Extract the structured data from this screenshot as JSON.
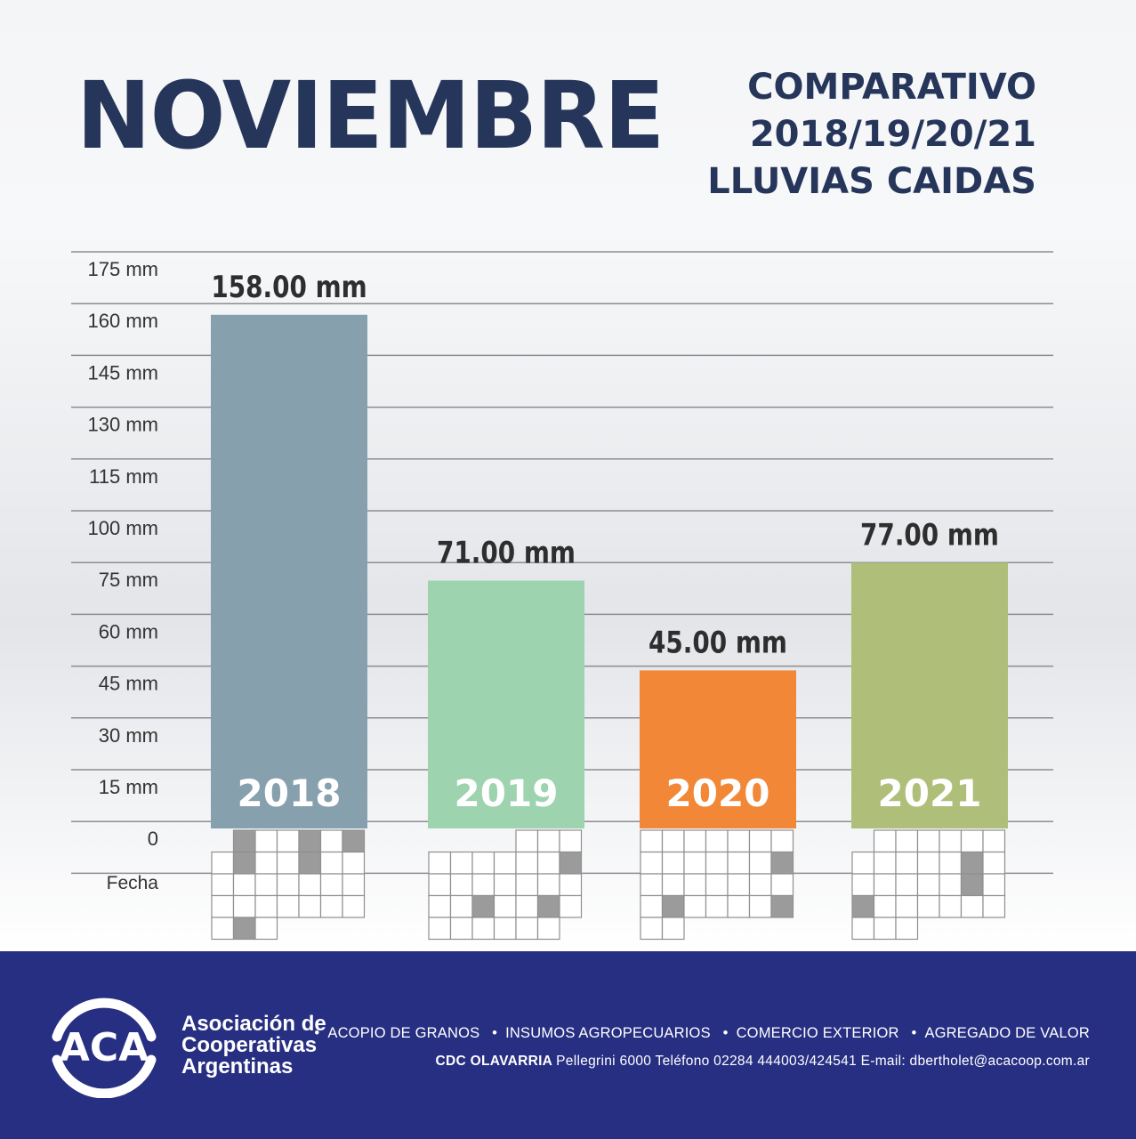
{
  "header": {
    "title": "NOVIEMBRE",
    "subtitle_lines": [
      "COMPARATIVO",
      "2018/19/20/21",
      "LLUVIAS CAIDAS"
    ]
  },
  "chart_data": {
    "type": "bar",
    "title": "NOVIEMBRE",
    "subtitle": "COMPARATIVO 2018/19/20/21 LLUVIAS CAIDAS",
    "categories": [
      "2018",
      "2019",
      "2020",
      "2021"
    ],
    "values": [
      158,
      71,
      45,
      77
    ],
    "value_labels": [
      "158.00 mm",
      "71.00 mm",
      "45.00 mm",
      "77.00 mm"
    ],
    "colors": [
      "#87a0ae",
      "#9dd3af",
      "#f18737",
      "#afbe78"
    ],
    "y_ticks": [
      "175 mm",
      "160 mm",
      "145 mm",
      "130 mm",
      "115 mm",
      "100 mm",
      "75 mm",
      "60 mm",
      "45 mm",
      "30 mm",
      "15 mm",
      "0"
    ],
    "y_tick_values": [
      175,
      160,
      145,
      130,
      115,
      100,
      75,
      60,
      45,
      30,
      15,
      0
    ],
    "fecha_label": "Fecha",
    "calendars": [
      {
        "start_offset": 1,
        "days": 30,
        "rain_days": [
          1,
          4,
          6,
          8,
          11,
          29
        ]
      },
      {
        "start_offset": 4,
        "days": 30,
        "rain_days": [
          10,
          20,
          23
        ]
      },
      {
        "start_offset": 0,
        "days": 30,
        "rain_days": [
          14,
          23,
          28
        ]
      },
      {
        "start_offset": 1,
        "days": 30,
        "rain_days": [
          12,
          19,
          21
        ]
      }
    ]
  },
  "footer": {
    "logo_text": "ACA",
    "association_lines": [
      "Asociación de",
      "Cooperativas",
      "Argentinas"
    ],
    "services": [
      "ACOPIO DE GRANOS",
      "INSUMOS AGROPECUARIOS",
      "COMERCIO EXTERIOR",
      "AGREGADO DE VALOR"
    ],
    "contact_bold": "CDC OLAVARRIA",
    "contact_rest": "Pellegrini 6000 Teléfono 02284 444003/424541 E-mail: dbertholet@acacoop.com.ar"
  }
}
